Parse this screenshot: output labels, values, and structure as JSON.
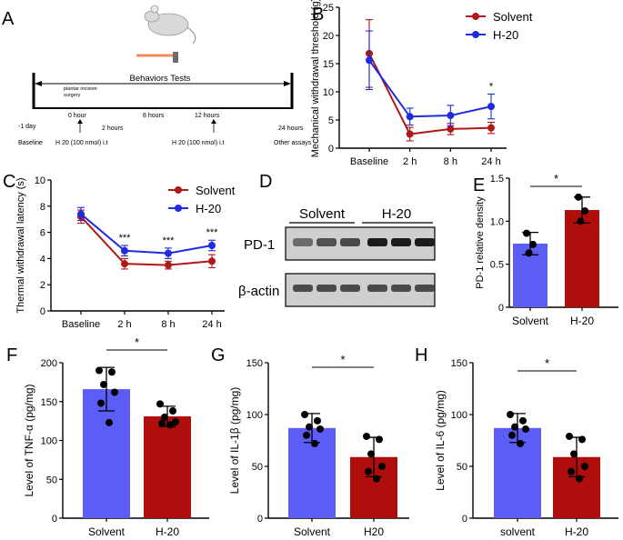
{
  "colors": {
    "solvent": "#b01717",
    "h20": "#1f2be0",
    "bar_blue": "#5b5df5",
    "bar_red": "#b00d0d",
    "black": "#000000",
    "mouse_body": "#d9d9d9",
    "bar_tool": "#f08c5a"
  },
  "panels": {
    "A": "A",
    "B": "B",
    "C": "C",
    "D": "D",
    "E": "E",
    "F": "F",
    "G": "G",
    "H": "H"
  },
  "timeline": {
    "behaviors": "Behaviors Tests",
    "surgery_1": "plantar incision",
    "surgery_2": "surgery",
    "ticks": [
      "-1 day",
      "0 hour",
      "2 hours",
      "8 hours",
      "12 hours",
      "24 hours"
    ],
    "baseline": "Baseline",
    "inj1": "H 20 (100 nmol) i.t",
    "inj2": "H 20 (100 nmol) i.t",
    "other": "Other assays"
  },
  "western": {
    "solvent": "Solvent",
    "h20": "H-20",
    "pd1": "PD-1",
    "actin": "β-actin"
  },
  "chart_data": [
    {
      "id": "B",
      "type": "line",
      "ylabel": "Mechanical withdrawal threshold (g)",
      "ylim": [
        0,
        25
      ],
      "yticks": [
        "0",
        "5",
        "10",
        "15",
        "20",
        "25"
      ],
      "categories": [
        "Baseline",
        "2 h",
        "8 h",
        "24 h"
      ],
      "legend_position": "top-right",
      "series": [
        {
          "name": "Solvent",
          "values": [
            16.8,
            2.5,
            3.4,
            3.6
          ],
          "errors": [
            6.0,
            1.2,
            1.0,
            1.0
          ]
        },
        {
          "name": "H-20",
          "values": [
            15.6,
            5.6,
            5.8,
            7.4
          ],
          "errors": [
            5.2,
            1.5,
            1.8,
            2.2
          ]
        }
      ],
      "annotations": [
        "",
        "",
        "",
        "*"
      ]
    },
    {
      "id": "C",
      "type": "line",
      "ylabel": "Thermal withdrawal latency (s)",
      "ylim": [
        0,
        10
      ],
      "yticks": [
        "0",
        "2",
        "4",
        "6",
        "8",
        "10"
      ],
      "categories": [
        "Baseline",
        "2 h",
        "8 h",
        "24 h"
      ],
      "legend_position": "top-right",
      "series": [
        {
          "name": "Solvent",
          "values": [
            7.2,
            3.6,
            3.5,
            3.8
          ],
          "errors": [
            0.5,
            0.4,
            0.3,
            0.5
          ]
        },
        {
          "name": "H-20",
          "values": [
            7.4,
            4.6,
            4.4,
            5.0
          ],
          "errors": [
            0.5,
            0.4,
            0.4,
            0.4
          ]
        }
      ],
      "annotations": [
        "",
        "***",
        "***",
        "***"
      ]
    },
    {
      "id": "E",
      "type": "bar",
      "ylabel": "PD-1 relative density",
      "ylim": [
        0,
        1.5
      ],
      "yticks": [
        "0",
        "0.5",
        "1.0",
        "1.5"
      ],
      "categories": [
        "Solvent",
        "H-20"
      ],
      "values": [
        0.74,
        1.13
      ],
      "errors": [
        0.13,
        0.15
      ],
      "points": [
        [
          0.86,
          0.73,
          0.63
        ],
        [
          1.28,
          1.12,
          1.0
        ]
      ],
      "sig": "*"
    },
    {
      "id": "F",
      "type": "bar",
      "ylabel": "Level of TNF-α (pg/mg)",
      "ylim": [
        0,
        200
      ],
      "yticks": [
        "0",
        "50",
        "100",
        "150",
        "200"
      ],
      "categories": [
        "Solvent",
        "H-20"
      ],
      "values": [
        166,
        131
      ],
      "errors": [
        28,
        13
      ],
      "points": [
        [
          190,
          188,
          172,
          162,
          148,
          123
        ],
        [
          147,
          138,
          130,
          124,
          122,
          120
        ]
      ],
      "sig": "*"
    },
    {
      "id": "G",
      "type": "bar",
      "ylabel": "Level of IL-1β (pg/mg)",
      "ylim": [
        0,
        150
      ],
      "yticks": [
        "0",
        "50",
        "100",
        "150"
      ],
      "categories": [
        "Solvent",
        "H20"
      ],
      "values": [
        87,
        59
      ],
      "errors": [
        14,
        19
      ],
      "points": [
        [
          100,
          94,
          88,
          86,
          80,
          72
        ],
        [
          79,
          76,
          62,
          50,
          45,
          38
        ]
      ],
      "sig": "*"
    },
    {
      "id": "H",
      "type": "bar",
      "ylabel": "Level of IL-6 (pg/mg)",
      "ylim": [
        0,
        150
      ],
      "yticks": [
        "0",
        "50",
        "100",
        "150"
      ],
      "categories": [
        "solvent",
        "H-20"
      ],
      "values": [
        87,
        59
      ],
      "errors": [
        14,
        19
      ],
      "points": [
        [
          100,
          94,
          88,
          86,
          80,
          72
        ],
        [
          79,
          76,
          62,
          50,
          45,
          38
        ]
      ],
      "sig": "*"
    }
  ]
}
